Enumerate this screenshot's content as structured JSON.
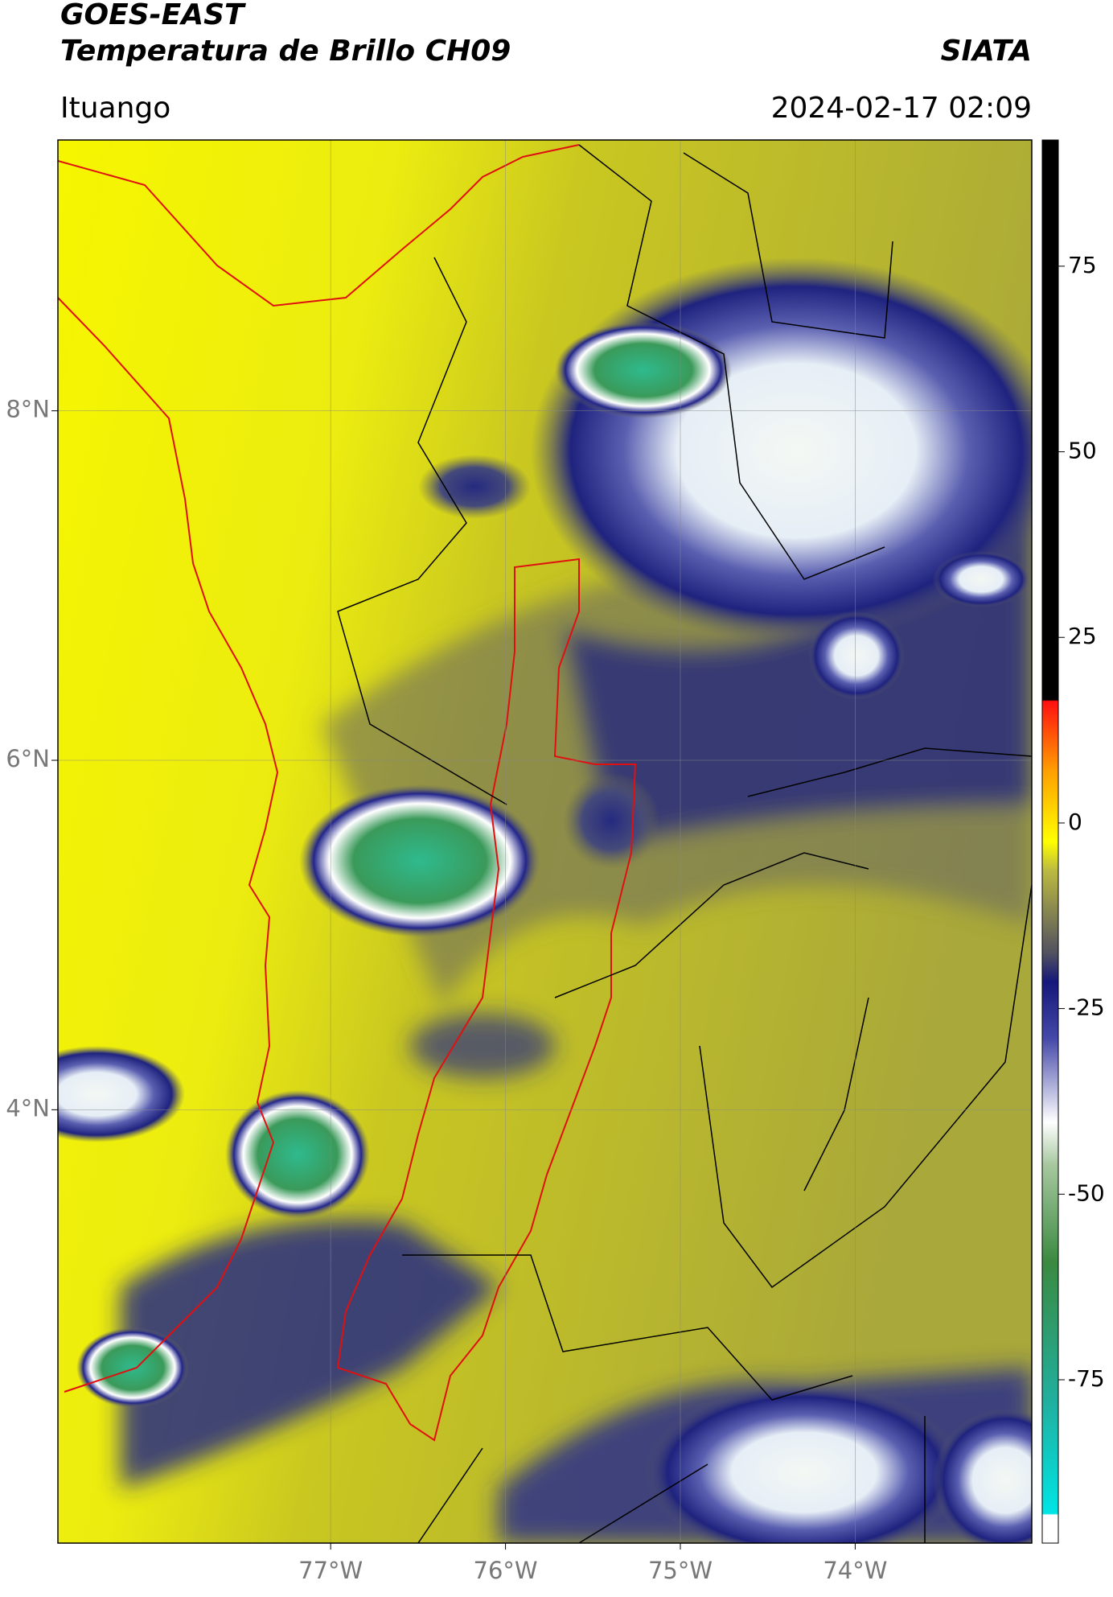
{
  "header": {
    "satellite": "GOES-EAST",
    "product": "Temperatura de Brillo CH09",
    "source": "SIATA",
    "location": "Ituango",
    "datetime": "2024-02-17 02:09"
  },
  "map": {
    "xlim": [
      -78.56,
      -72.99
    ],
    "ylim": [
      1.52,
      9.55
    ],
    "xticks": [
      {
        "value": -77,
        "label": "77°W"
      },
      {
        "value": -76,
        "label": "76°W"
      },
      {
        "value": -75,
        "label": "75°W"
      },
      {
        "value": -74,
        "label": "74°W"
      }
    ],
    "yticks": [
      {
        "value": 8,
        "label": "8°N"
      },
      {
        "value": 6,
        "label": "6°N"
      },
      {
        "value": 4,
        "label": "4°N"
      }
    ]
  },
  "colorbar": {
    "lim": [
      -97,
      92
    ],
    "ticks": [
      75,
      50,
      25,
      0,
      -25,
      -50,
      -75
    ]
  }
}
